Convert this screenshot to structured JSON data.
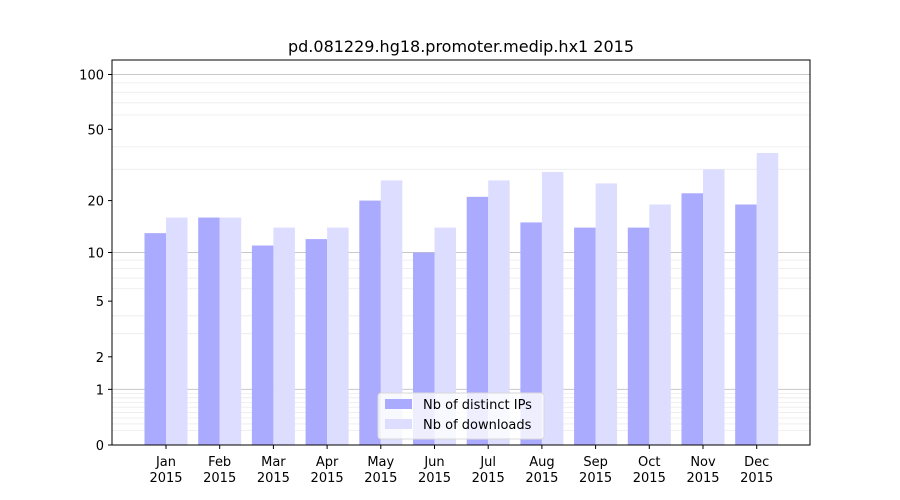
{
  "chart_data": {
    "type": "bar",
    "title": "pd.081229.hg18.promoter.medip.hx1 2015",
    "xlabel": "",
    "ylabel": "",
    "yscale": "symlog",
    "ylim": [
      0,
      120
    ],
    "yticks": [
      0,
      1,
      2,
      5,
      10,
      20,
      50,
      100
    ],
    "ytick_labels": [
      "0",
      "1",
      "2",
      "5",
      "10",
      "20",
      "50",
      "100"
    ],
    "categories": [
      {
        "month": "Jan",
        "year": "2015"
      },
      {
        "month": "Feb",
        "year": "2015"
      },
      {
        "month": "Mar",
        "year": "2015"
      },
      {
        "month": "Apr",
        "year": "2015"
      },
      {
        "month": "May",
        "year": "2015"
      },
      {
        "month": "Jun",
        "year": "2015"
      },
      {
        "month": "Jul",
        "year": "2015"
      },
      {
        "month": "Aug",
        "year": "2015"
      },
      {
        "month": "Sep",
        "year": "2015"
      },
      {
        "month": "Oct",
        "year": "2015"
      },
      {
        "month": "Nov",
        "year": "2015"
      },
      {
        "month": "Dec",
        "year": "2015"
      }
    ],
    "series": [
      {
        "name": "Nb of distinct IPs",
        "color": "#aaaaff",
        "values": [
          13,
          16,
          11,
          12,
          20,
          10,
          21,
          15,
          14,
          14,
          22,
          19
        ]
      },
      {
        "name": "Nb of downloads",
        "color": "#ddddff",
        "values": [
          16,
          16,
          14,
          14,
          26,
          14,
          26,
          29,
          25,
          19,
          30,
          37
        ]
      }
    ],
    "grid": true,
    "legend_position": "bottom-center"
  }
}
